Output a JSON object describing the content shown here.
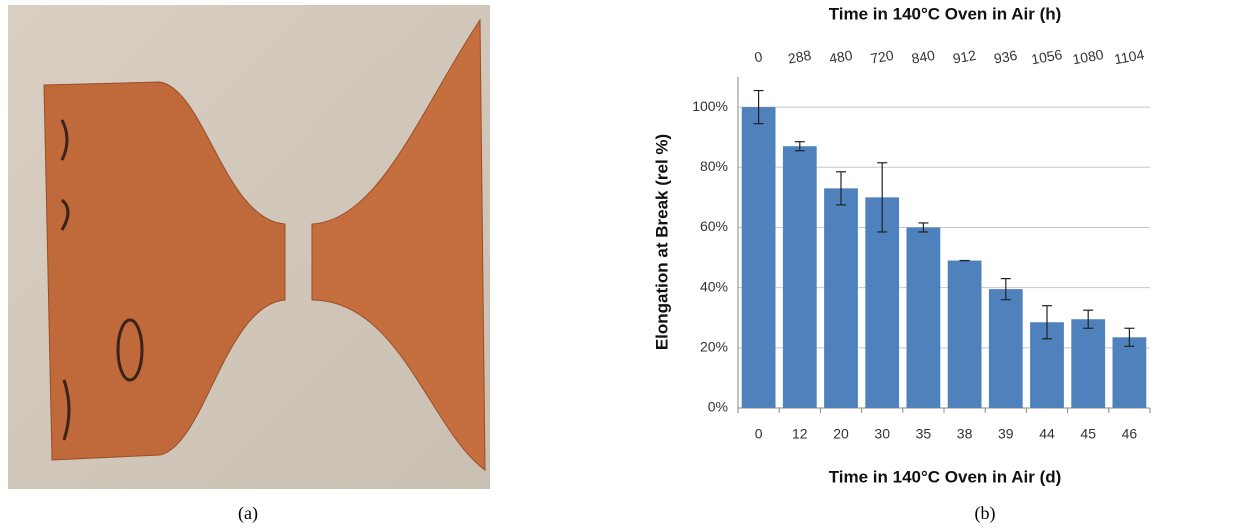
{
  "figure_labels": [
    "(a)",
    "(b)"
  ],
  "chart_data": {
    "type": "bar",
    "title_top": "Time in 140°C Oven in Air (h)",
    "x_label": "Time in 140°C Oven in Air (d)",
    "y_label": "Elongation at Break (rel %)",
    "categories": [
      "0",
      "12",
      "20",
      "30",
      "35",
      "38",
      "39",
      "44",
      "45",
      "46"
    ],
    "top_categories": [
      "0",
      "288",
      "480",
      "720",
      "840",
      "912",
      "936",
      "1056",
      "1080",
      "1104"
    ],
    "values": [
      100,
      87,
      73,
      70,
      60,
      49,
      39.5,
      28.5,
      29.5,
      23.5
    ],
    "errors": [
      5.5,
      1.5,
      5.5,
      11.5,
      1.5,
      0,
      3.5,
      5.5,
      3,
      3
    ],
    "color": "#4f81bd",
    "ylim": [
      0,
      110
    ],
    "yticks": [
      {
        "value": 0,
        "label": "0%"
      },
      {
        "value": 20,
        "label": "20%"
      },
      {
        "value": 40,
        "label": "40%"
      },
      {
        "value": 60,
        "label": "60%"
      },
      {
        "value": 80,
        "label": "80%"
      },
      {
        "value": 100,
        "label": "100%"
      }
    ],
    "grid": true
  }
}
